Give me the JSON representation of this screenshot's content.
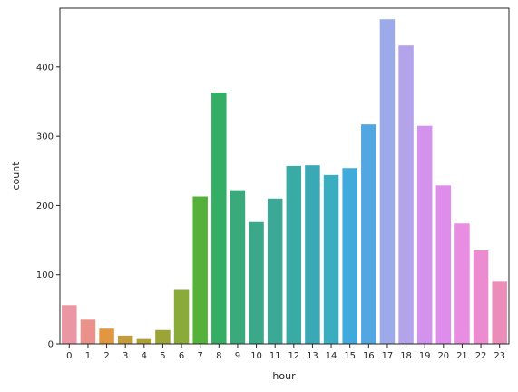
{
  "chart_data": {
    "type": "bar",
    "xlabel": "hour",
    "ylabel": "count",
    "ylim": [
      0,
      485
    ],
    "yticks": [
      0,
      100,
      200,
      300,
      400
    ],
    "grid": false,
    "categories": [
      "0",
      "1",
      "2",
      "3",
      "4",
      "5",
      "6",
      "7",
      "8",
      "9",
      "10",
      "11",
      "12",
      "13",
      "14",
      "15",
      "16",
      "17",
      "18",
      "19",
      "20",
      "21",
      "22",
      "23"
    ],
    "values": [
      56,
      35,
      22,
      12,
      7,
      20,
      78,
      213,
      363,
      222,
      176,
      210,
      257,
      258,
      244,
      254,
      317,
      469,
      431,
      315,
      229,
      174,
      135,
      90
    ],
    "colors": [
      "#ea96a3",
      "#e9918a",
      "#e09740",
      "#c19b3c",
      "#ad9e36",
      "#9ba537",
      "#8aaa3a",
      "#56b13b",
      "#34ae64",
      "#3aa97b",
      "#3ba989",
      "#3ba996",
      "#39aaa4",
      "#3aa9b5",
      "#3aadc1",
      "#40aadc",
      "#52a6e2",
      "#9caae9",
      "#b3a3eb",
      "#d393ed",
      "#df8dec",
      "#e88de2",
      "#eb8bd0",
      "#eb8db8"
    ]
  }
}
